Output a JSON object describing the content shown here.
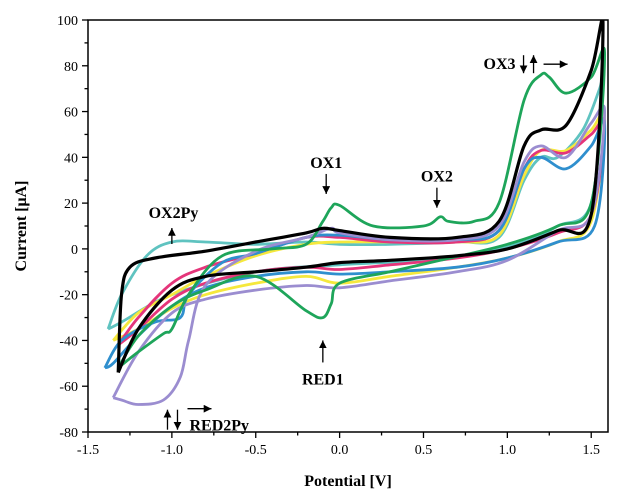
{
  "chart_data": {
    "type": "line",
    "title": "",
    "xlabel": "Potential [V]",
    "ylabel": "Current [μA]",
    "xlim": [
      -1.5,
      1.6
    ],
    "ylim": [
      -80,
      100
    ],
    "xticks": [
      -1.5,
      -1.0,
      -0.5,
      0.0,
      0.5,
      1.0,
      1.5
    ],
    "xtick_labels": [
      "-1.5",
      "-1.0",
      "-0.5",
      "0.0",
      "0.5",
      "1.0",
      "1.5"
    ],
    "yticks": [
      -80,
      -60,
      -40,
      -20,
      0,
      20,
      40,
      60,
      80,
      100
    ],
    "ytick_labels": [
      "-80",
      "-60",
      "-40",
      "-20",
      "0",
      "20",
      "40",
      "60",
      "80",
      "100"
    ],
    "grid": false,
    "legend": "none",
    "series": [
      {
        "color": "#5fc3c0",
        "x": [
          -1.38,
          -1.3,
          -1.15,
          -1.0,
          -0.8,
          -0.5,
          -0.2,
          0.0,
          0.3,
          0.7,
          0.95,
          1.1,
          1.2,
          1.3,
          1.45,
          1.55,
          1.57,
          1.5,
          1.3,
          1.1,
          0.8,
          0.5,
          0.0,
          -0.5,
          -1.0,
          -1.3,
          -1.38
        ],
        "y": [
          -35,
          -20,
          -3,
          3,
          3,
          2,
          3,
          2,
          2,
          3,
          5,
          30,
          40,
          40,
          52,
          70,
          75,
          20,
          10,
          3,
          -2,
          -5,
          -7,
          -10,
          -20,
          -32,
          -35
        ]
      },
      {
        "color": "#f5e83d",
        "x": [
          -1.35,
          -1.2,
          -1.0,
          -0.8,
          -0.5,
          -0.2,
          0.0,
          0.3,
          0.7,
          0.95,
          1.1,
          1.2,
          1.35,
          1.5,
          1.58,
          1.5,
          1.3,
          1.0,
          0.7,
          0.3,
          0.0,
          -0.2,
          -0.5,
          -0.8,
          -1.0,
          -1.2,
          -1.35
        ],
        "y": [
          -40,
          -28,
          -20,
          -12,
          -3,
          2,
          3,
          3,
          3,
          6,
          32,
          43,
          43,
          52,
          58,
          12,
          3,
          -4,
          -8,
          -12,
          -15,
          -12,
          -15,
          -20,
          -26,
          -35,
          -40
        ]
      },
      {
        "color": "#e5357a",
        "x": [
          -1.32,
          -1.2,
          -1.0,
          -0.8,
          -0.5,
          -0.2,
          0.0,
          0.3,
          0.7,
          0.95,
          1.1,
          1.2,
          1.35,
          1.5,
          1.58,
          1.5,
          1.3,
          1.0,
          0.7,
          0.3,
          0.0,
          -0.2,
          -0.5,
          -0.8,
          -1.0,
          -1.2,
          -1.32
        ],
        "y": [
          -42,
          -30,
          -15,
          -8,
          -2,
          5,
          5,
          3,
          3,
          8,
          35,
          43,
          42,
          50,
          55,
          15,
          7,
          0,
          -4,
          -7,
          -9,
          -8,
          -10,
          -15,
          -22,
          -35,
          -42
        ]
      },
      {
        "color": "#2f8fce",
        "x": [
          -1.4,
          -1.3,
          -1.1,
          -0.95,
          -0.9,
          -0.7,
          -0.5,
          -0.2,
          0.0,
          0.3,
          0.7,
          0.95,
          1.1,
          1.2,
          1.35,
          1.5,
          1.58,
          1.52,
          1.3,
          1.0,
          0.7,
          0.3,
          0.0,
          -0.2,
          -0.5,
          -0.8,
          -1.0,
          -1.2,
          -1.35,
          -1.4
        ],
        "y": [
          -52,
          -40,
          -32,
          -30,
          -20,
          -6,
          -2,
          5,
          6,
          4,
          4,
          8,
          35,
          40,
          35,
          45,
          55,
          10,
          3,
          -4,
          -8,
          -10,
          -11,
          -10,
          -12,
          -17,
          -25,
          -38,
          -50,
          -52
        ]
      },
      {
        "color": "#9b8dd0",
        "x": [
          -1.35,
          -1.3,
          -1.2,
          -1.05,
          -0.95,
          -0.9,
          -0.8,
          -0.5,
          -0.2,
          -0.05,
          0.0,
          0.3,
          0.7,
          0.95,
          1.1,
          1.2,
          1.35,
          1.5,
          1.58,
          1.5,
          1.3,
          1.0,
          0.7,
          0.3,
          0.0,
          -0.2,
          -0.5,
          -0.8,
          -1.0,
          -1.2,
          -1.35
        ],
        "y": [
          -65,
          -66,
          -68,
          -66,
          -56,
          -40,
          -16,
          -1,
          5,
          9,
          7,
          4,
          4,
          10,
          38,
          45,
          40,
          55,
          60,
          15,
          8,
          -5,
          -10,
          -14,
          -17,
          -16,
          -18,
          -22,
          -28,
          -45,
          -65
        ]
      },
      {
        "color": "#1ea55a",
        "x": [
          -1.32,
          -1.2,
          -1.05,
          -1.0,
          -0.9,
          -0.7,
          -0.4,
          -0.2,
          -0.1,
          -0.05,
          0.0,
          0.2,
          0.5,
          0.6,
          0.65,
          0.8,
          0.95,
          1.1,
          1.2,
          1.25,
          1.35,
          1.5,
          1.58,
          1.5,
          1.3,
          1.0,
          0.6,
          0.3,
          0.0,
          -0.05,
          -0.1,
          -0.2,
          -0.5,
          -0.8,
          -1.0,
          -1.2,
          -1.32
        ],
        "y": [
          -52,
          -45,
          -37,
          -35,
          -20,
          -3,
          0,
          2,
          12,
          18,
          19,
          10,
          10,
          14,
          12,
          12,
          20,
          65,
          76,
          75,
          68,
          75,
          85,
          20,
          10,
          2,
          -5,
          -10,
          -15,
          -24,
          -30,
          -27,
          -12,
          -18,
          -25,
          -38,
          -52
        ]
      },
      {
        "color": "#000000",
        "x": [
          -1.32,
          -1.3,
          -1.25,
          -1.1,
          -0.8,
          -0.5,
          -0.2,
          -0.1,
          0.0,
          0.3,
          0.7,
          0.95,
          1.1,
          1.2,
          1.35,
          1.5,
          1.57,
          1.5,
          1.3,
          1.0,
          0.7,
          0.3,
          0.0,
          -0.2,
          -0.5,
          -0.8,
          -1.0,
          -1.2,
          -1.32
        ],
        "y": [
          -54,
          -20,
          -8,
          -4,
          -1,
          3,
          7,
          9,
          8,
          5,
          5,
          12,
          45,
          52,
          54,
          78,
          98,
          15,
          8,
          0,
          -3,
          -5,
          -6,
          -8,
          -10,
          -12,
          -18,
          -35,
          -54
        ]
      }
    ],
    "annotations": [
      {
        "label": "OX1",
        "x": -0.08,
        "y": 24,
        "arrow": "down"
      },
      {
        "label": "OX2",
        "x": 0.58,
        "y": 18,
        "arrow": "down"
      },
      {
        "label": "OX3",
        "x": 1.18,
        "y": 82,
        "arrow": "down-up-right"
      },
      {
        "label": "OX2Py",
        "x": -1.05,
        "y": 10,
        "arrow": "up"
      },
      {
        "label": "RED1",
        "x": -0.1,
        "y": -40,
        "arrow": "up"
      },
      {
        "label": "RED2Py",
        "x": -1.05,
        "y": -72,
        "arrow": "up-down-right"
      }
    ]
  }
}
